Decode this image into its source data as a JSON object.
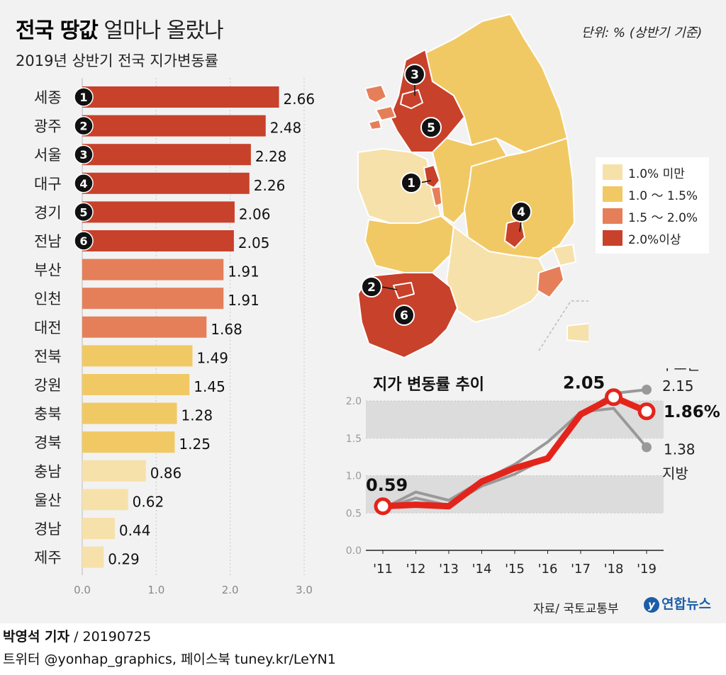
{
  "header": {
    "title_bold": "전국 땅값",
    "title_light": "얼마나 올랐나",
    "subtitle": "2019년 상반기 전국 지가변동률",
    "unit": "단위: % (상반기 기준)"
  },
  "colors": {
    "tier_2_0_plus": "#c8412b",
    "tier_1_5_2_0": "#e57f59",
    "tier_1_0_1_5": "#f1c964",
    "tier_under_1_0": "#f7e1aa",
    "line_national": "#e3241b",
    "line_other": "#999999",
    "rank_badge": "#111111"
  },
  "chart_data": [
    {
      "type": "bar",
      "orientation": "horizontal",
      "categories": [
        "세종",
        "광주",
        "서울",
        "대구",
        "경기",
        "전남",
        "부산",
        "인천",
        "대전",
        "전북",
        "강원",
        "충북",
        "경북",
        "충남",
        "울산",
        "경남",
        "제주"
      ],
      "values": [
        2.66,
        2.48,
        2.28,
        2.26,
        2.06,
        2.05,
        1.91,
        1.91,
        1.68,
        1.49,
        1.45,
        1.28,
        1.25,
        0.86,
        0.62,
        0.44,
        0.29
      ],
      "value_labels": [
        "2.66",
        "2.48",
        "2.28",
        "2.26",
        "2.06",
        "2.05",
        "1.91",
        "1.91",
        "1.68",
        "1.49",
        "1.45",
        "1.28",
        "1.25",
        "0.86",
        "0.62",
        "0.44",
        "0.29"
      ],
      "ranks": [
        "1",
        "2",
        "3",
        "4",
        "5",
        "6"
      ],
      "xlim": [
        0,
        3.0
      ],
      "xticks": [
        "0.0",
        "1.0",
        "2.0",
        "3.0"
      ],
      "grid": true
    },
    {
      "type": "line",
      "title": "지가 변동률 추이",
      "x": [
        "'11",
        "'12",
        "'13",
        "'14",
        "'15",
        "'16",
        "'17",
        "'18",
        "'19"
      ],
      "ylim": [
        0,
        2.0
      ],
      "yticks": [
        "0.0",
        "0.5",
        "1.0",
        "1.5",
        "2.0"
      ],
      "series": [
        {
          "name": "수도권",
          "values": [
            0.56,
            0.7,
            0.6,
            0.86,
            1.02,
            1.25,
            1.82,
            2.1,
            2.15
          ]
        },
        {
          "name": "지방",
          "values": [
            0.56,
            0.78,
            0.67,
            0.93,
            1.15,
            1.45,
            1.85,
            1.9,
            1.38
          ]
        },
        {
          "values": [
            0.59,
            0.61,
            0.59,
            0.92,
            1.1,
            1.23,
            1.82,
            2.05,
            1.86
          ]
        }
      ],
      "annotations": {
        "start_value": "0.59",
        "peak_value": "2.05",
        "capital_label": "수도권",
        "capital_value": "2.15",
        "national_value": "1.86%",
        "local_value": "1.38",
        "local_label": "지방"
      }
    }
  ],
  "map": {
    "markers": [
      "1",
      "2",
      "3",
      "4",
      "5",
      "6"
    ],
    "legend": [
      {
        "label": "1.0% 미만",
        "color": "#f7e1aa"
      },
      {
        "label": "1.0 ～ 1.5%",
        "color": "#f1c964"
      },
      {
        "label": "1.5 ～ 2.0%",
        "color": "#e57f59"
      },
      {
        "label": "2.0%이상",
        "color": "#c8412b"
      }
    ]
  },
  "footer": {
    "source": "자료/ 국토교통부",
    "logo_mark": "y",
    "logo_text": "연합뉴스",
    "reporter": "박영석 기자",
    "date": "/  20190725",
    "social": "트위터 @yonhap_graphics, 페이스북 tuney.kr/LeYN1"
  }
}
